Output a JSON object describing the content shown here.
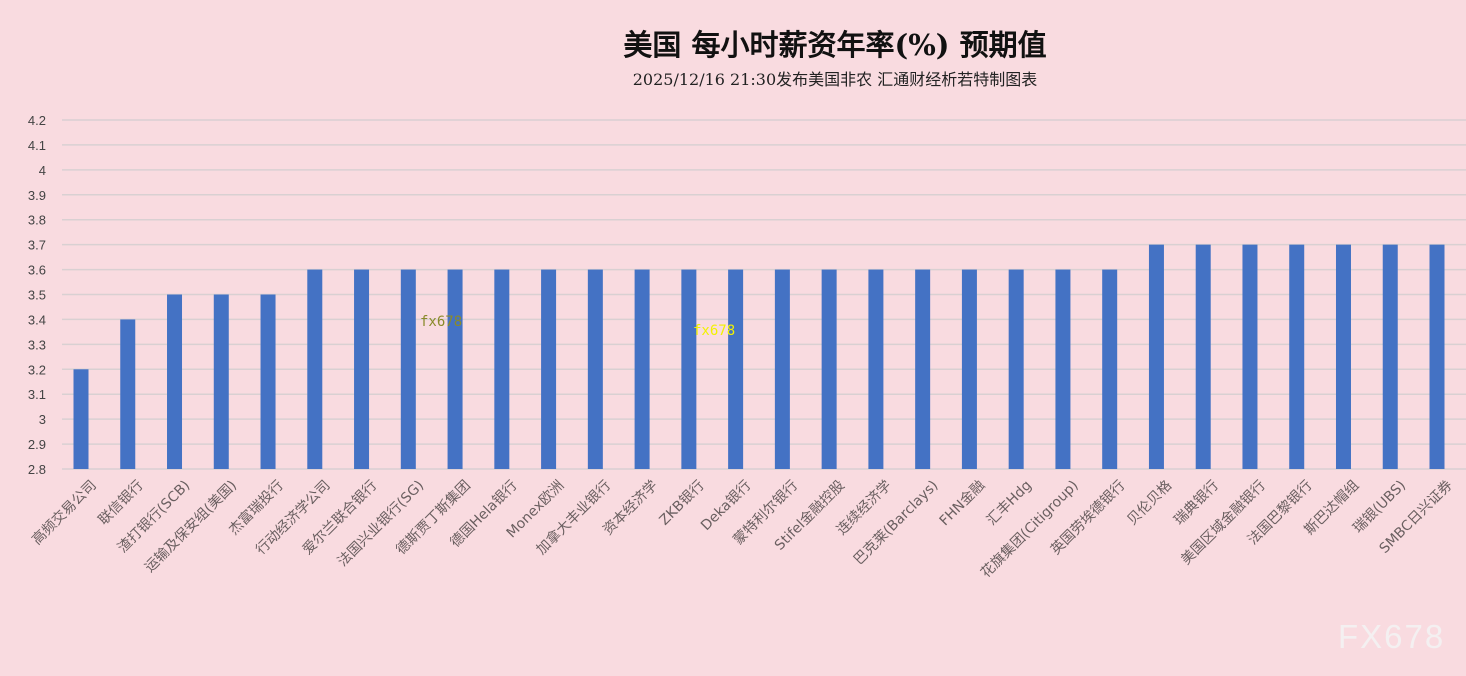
{
  "chart_data": {
    "type": "bar",
    "title": "美国  每小时薪资年率(%)  预期值",
    "subtitle": "2025/12/16  21:30发布美国非农  汇通财经析若特制图表",
    "xlabel": "",
    "ylabel": "",
    "ylim": [
      2.8,
      4.2
    ],
    "yticks": [
      "2.8",
      "2.9",
      "3",
      "3.1",
      "3.2",
      "3.3",
      "3.4",
      "3.5",
      "3.6",
      "3.7",
      "3.8",
      "3.9",
      "4",
      "4.1",
      "4.2"
    ],
    "grid": true,
    "bar_color": "#4472c4",
    "categories": [
      "高频交易公司",
      "联信银行",
      "渣打银行(SCB)",
      "运输及保安组(美国)",
      "杰富瑞投行",
      "行动经济学公司",
      "爱尔兰联合银行",
      "法国兴业银行(SG)",
      "德斯贾丁斯集团",
      "德国Hela银行",
      "Monex欧洲",
      "加拿大丰业银行",
      "资本经济学",
      "ZKB银行",
      "Deka银行",
      "蒙特利尔银行",
      "Stifel金融控股",
      "连续经济学",
      "巴克莱(Barclays)",
      "FHN金融",
      "汇丰Hdg",
      "花旗集团(Citigroup)",
      "英国劳埃德银行",
      "贝伦贝格",
      "瑞典银行",
      "美国区域金融银行",
      "法国巴黎银行",
      "斯巴达帽组",
      "瑞银(UBS)",
      "SMBC日兴证券"
    ],
    "values": [
      3.2,
      3.4,
      3.5,
      3.5,
      3.5,
      3.6,
      3.6,
      3.6,
      3.6,
      3.6,
      3.6,
      3.6,
      3.6,
      3.6,
      3.6,
      3.6,
      3.6,
      3.6,
      3.6,
      3.6,
      3.6,
      3.6,
      3.6,
      3.7,
      3.7,
      3.7,
      3.7,
      3.7,
      3.7,
      3.7
    ]
  },
  "watermarks": {
    "small": "fx678",
    "logo": "FX678"
  }
}
